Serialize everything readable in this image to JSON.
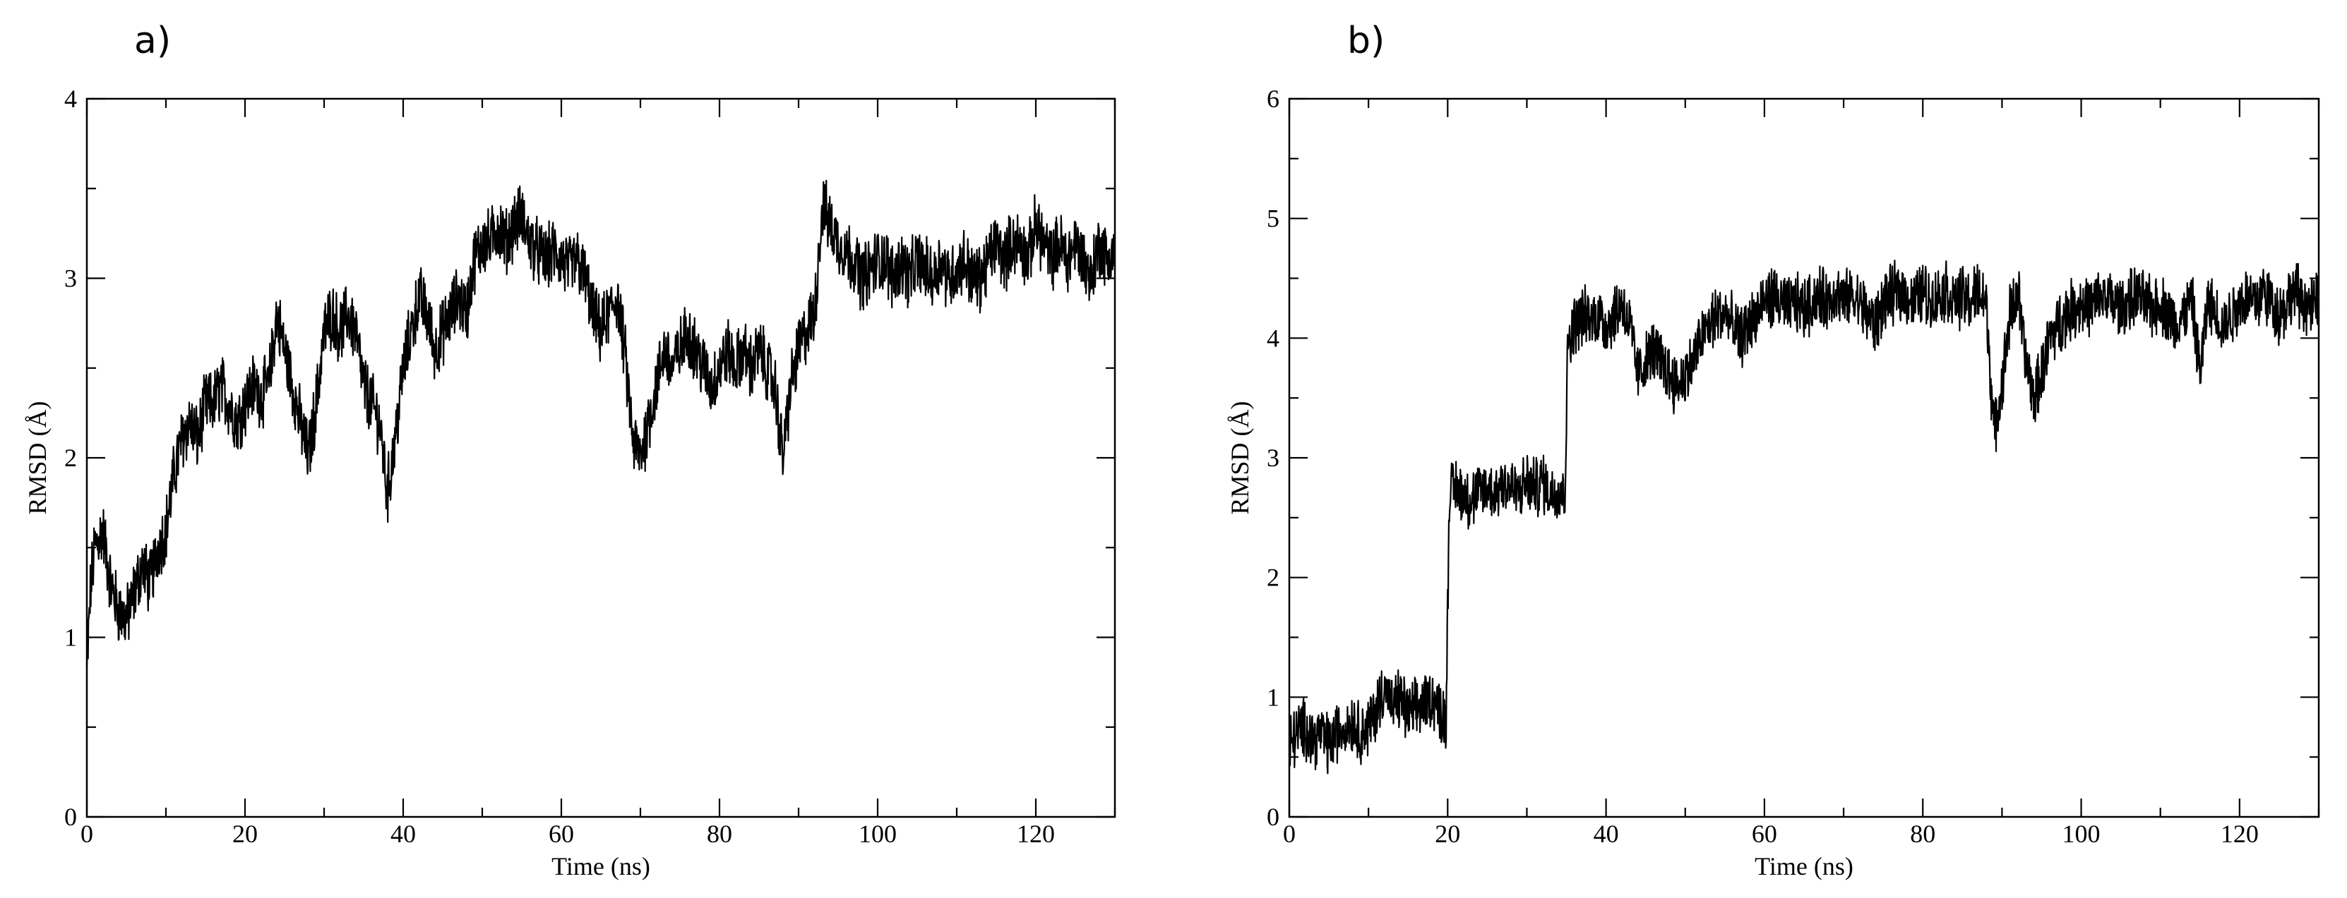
{
  "chart_data": [
    {
      "type": "line",
      "panel_label": "a)",
      "xlabel": "Time (ns)",
      "ylabel": "RMSD (Å)",
      "xlim": [
        0,
        130
      ],
      "ylim": [
        0,
        4
      ],
      "xticks": [
        0,
        20,
        40,
        60,
        80,
        100,
        120
      ],
      "xtick_labels": [
        "0",
        "20",
        "40",
        "60",
        "80",
        "100",
        "120"
      ],
      "yticks": [
        0,
        1,
        2,
        3,
        4
      ],
      "ytick_labels": [
        "0",
        "1",
        "2",
        "3",
        "4"
      ],
      "grid": false,
      "legend": "none",
      "line_color": "#000000",
      "noise_amplitude": 0.16,
      "series": [
        {
          "x": [
            0,
            0.5,
            1,
            2,
            3,
            4,
            5,
            6,
            7,
            8,
            9,
            10,
            11,
            12,
            13,
            14,
            15,
            16,
            17,
            18,
            19,
            20,
            21,
            22,
            23,
            24,
            25,
            26,
            27,
            28,
            29,
            30,
            31,
            32,
            33,
            34,
            35,
            36,
            37,
            38,
            39,
            40,
            41,
            42,
            43,
            44,
            45,
            46,
            47,
            48,
            49,
            50,
            51,
            52,
            53,
            54,
            55,
            56,
            57,
            58,
            59,
            60,
            61,
            62,
            63,
            64,
            65,
            66,
            67,
            68,
            69,
            70,
            71,
            72,
            73,
            74,
            75,
            76,
            77,
            78,
            79,
            80,
            81,
            82,
            83,
            84,
            85,
            86,
            87,
            88,
            89,
            90,
            91,
            92,
            93,
            94,
            95,
            96,
            97,
            98,
            99,
            100,
            101,
            102,
            103,
            104,
            105,
            106,
            107,
            108,
            109,
            110,
            111,
            112,
            113,
            114,
            115,
            116,
            117,
            118,
            119,
            120,
            121,
            122,
            123,
            124,
            125,
            126,
            127,
            128,
            129,
            130
          ],
          "y": [
            0.8,
            1.3,
            1.5,
            1.6,
            1.3,
            1.15,
            1.1,
            1.25,
            1.4,
            1.3,
            1.5,
            1.6,
            1.9,
            2.1,
            2.2,
            2.1,
            2.3,
            2.3,
            2.4,
            2.3,
            2.2,
            2.3,
            2.4,
            2.35,
            2.4,
            2.8,
            2.6,
            2.4,
            2.2,
            2.0,
            2.3,
            2.7,
            2.8,
            2.7,
            2.8,
            2.7,
            2.4,
            2.3,
            2.2,
            1.8,
            2.1,
            2.5,
            2.7,
            2.9,
            2.8,
            2.6,
            2.7,
            2.8,
            2.9,
            2.8,
            3.1,
            3.2,
            3.2,
            3.3,
            3.2,
            3.3,
            3.35,
            3.2,
            3.15,
            3.1,
            3.15,
            3.1,
            3.05,
            3.1,
            3.0,
            2.8,
            2.7,
            2.8,
            2.9,
            2.6,
            2.1,
            2.0,
            2.2,
            2.4,
            2.6,
            2.5,
            2.6,
            2.7,
            2.6,
            2.5,
            2.4,
            2.5,
            2.6,
            2.5,
            2.6,
            2.5,
            2.6,
            2.5,
            2.4,
            2.0,
            2.4,
            2.6,
            2.7,
            2.8,
            3.4,
            3.3,
            3.2,
            3.15,
            3.1,
            3.0,
            3.05,
            3.1,
            3.1,
            3.0,
            3.1,
            3.0,
            3.1,
            3.05,
            3.0,
            3.1,
            3.0,
            3.05,
            3.1,
            3.0,
            3.0,
            3.1,
            3.2,
            3.1,
            3.2,
            3.2,
            3.1,
            3.3,
            3.2,
            3.1,
            3.2,
            3.1,
            3.2,
            3.1,
            3.0,
            3.2,
            3.1,
            3.15
          ]
        }
      ]
    },
    {
      "type": "line",
      "panel_label": "b)",
      "xlabel": "Time (ns)",
      "ylabel": "RMSD (Å)",
      "xlim": [
        0,
        130
      ],
      "ylim": [
        0,
        6
      ],
      "xticks": [
        0,
        20,
        40,
        60,
        80,
        100,
        120
      ],
      "xtick_labels": [
        "0",
        "20",
        "40",
        "60",
        "80",
        "100",
        "120"
      ],
      "yticks": [
        0,
        1,
        2,
        3,
        4,
        5,
        6
      ],
      "ytick_labels": [
        "0",
        "1",
        "2",
        "3",
        "4",
        "5",
        "6"
      ],
      "grid": false,
      "legend": "none",
      "line_color": "#000000",
      "noise_amplitude": 0.22,
      "series": [
        {
          "x": [
            0,
            1,
            2,
            3,
            4,
            5,
            6,
            7,
            8,
            9,
            10,
            11,
            12,
            13,
            14,
            15,
            16,
            17,
            18,
            19,
            19.8,
            20.2,
            21,
            22,
            23,
            24,
            25,
            26,
            27,
            28,
            29,
            30,
            31,
            32,
            33,
            34,
            34.8,
            35.2,
            36,
            37,
            38,
            39,
            40,
            41,
            42,
            43,
            44,
            45,
            46,
            47,
            48,
            49,
            50,
            51,
            52,
            53,
            54,
            55,
            56,
            57,
            58,
            59,
            60,
            61,
            62,
            63,
            64,
            65,
            66,
            67,
            68,
            69,
            70,
            71,
            72,
            73,
            74,
            75,
            76,
            77,
            78,
            79,
            80,
            81,
            82,
            83,
            84,
            85,
            86,
            87,
            88,
            89,
            90,
            91,
            92,
            93,
            94,
            95,
            96,
            97,
            98,
            99,
            100,
            101,
            102,
            103,
            104,
            105,
            106,
            107,
            108,
            109,
            110,
            111,
            112,
            113,
            114,
            115,
            116,
            117,
            118,
            119,
            120,
            121,
            122,
            123,
            124,
            125,
            126,
            127,
            128,
            129,
            130
          ],
          "y": [
            0.6,
            0.7,
            0.75,
            0.65,
            0.7,
            0.6,
            0.7,
            0.75,
            0.8,
            0.7,
            0.75,
            0.9,
            1.1,
            0.9,
            1.0,
            0.85,
            0.9,
            0.95,
            1.0,
            0.9,
            0.8,
            2.7,
            2.75,
            2.7,
            2.65,
            2.7,
            2.75,
            2.7,
            2.8,
            2.75,
            2.7,
            2.8,
            2.75,
            2.8,
            2.7,
            2.75,
            2.7,
            4.0,
            4.1,
            4.2,
            4.15,
            4.2,
            4.1,
            4.2,
            4.3,
            4.1,
            3.7,
            3.8,
            3.9,
            3.8,
            3.7,
            3.6,
            3.7,
            3.8,
            4.0,
            4.1,
            4.2,
            4.2,
            4.1,
            4.0,
            4.1,
            4.2,
            4.3,
            4.35,
            4.3,
            4.25,
            4.3,
            4.25,
            4.3,
            4.35,
            4.3,
            4.4,
            4.3,
            4.35,
            4.3,
            4.2,
            4.1,
            4.3,
            4.35,
            4.4,
            4.35,
            4.3,
            4.4,
            4.3,
            4.35,
            4.4,
            4.3,
            4.35,
            4.3,
            4.4,
            4.3,
            3.2,
            3.6,
            4.2,
            4.4,
            3.8,
            3.5,
            3.7,
            4.0,
            4.1,
            4.2,
            4.25,
            4.3,
            4.25,
            4.3,
            4.35,
            4.3,
            4.25,
            4.3,
            4.35,
            4.3,
            4.25,
            4.3,
            4.2,
            4.1,
            4.2,
            4.3,
            3.7,
            4.3,
            4.2,
            4.1,
            4.2,
            4.3,
            4.35,
            4.3,
            4.4,
            4.3,
            4.2,
            4.3,
            4.4,
            4.3,
            4.25,
            4.3
          ]
        }
      ]
    }
  ]
}
